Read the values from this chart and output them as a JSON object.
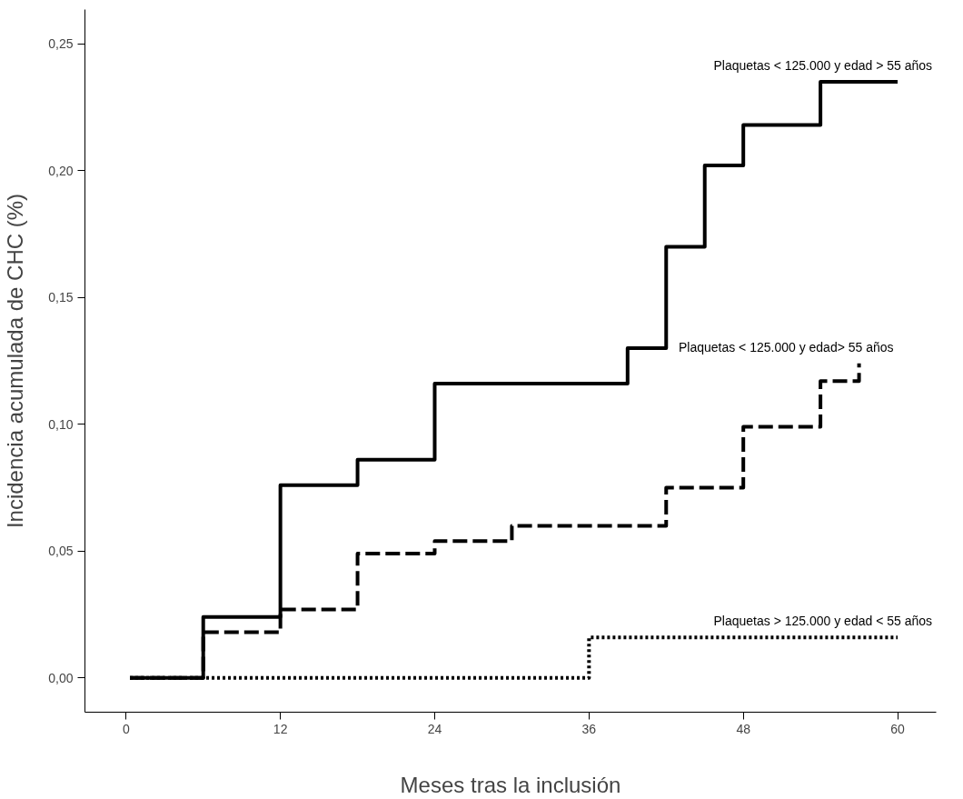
{
  "chart_data": {
    "type": "step",
    "xlabel": "Meses tras la inclusión",
    "ylabel": "Incidencia acumulada de CHC (%)",
    "xlim": [
      -3.2,
      63
    ],
    "ylim": [
      -0.0135,
      0.2635
    ],
    "xticks": [
      0,
      12,
      24,
      36,
      48,
      60
    ],
    "yticks": [
      {
        "value": 0,
        "label": "0,00"
      },
      {
        "value": 0.05,
        "label": "0,05"
      },
      {
        "value": 0.1,
        "label": "0,10"
      },
      {
        "value": 0.15,
        "label": "0,15"
      },
      {
        "value": 0.2,
        "label": "0,20"
      },
      {
        "value": 0.25,
        "label": "0,25"
      }
    ],
    "grid": false,
    "series": [
      {
        "name": "Plaquetas < 125.000 y edad > 55 años",
        "color": "#000000",
        "line_style": "solid",
        "x": [
          0.3,
          6,
          12,
          18,
          24,
          39,
          42,
          45,
          48,
          54,
          60
        ],
        "values": [
          0,
          0.024,
          0.076,
          0.086,
          0.116,
          0.13,
          0.17,
          0.202,
          0.218,
          0.235,
          0.235
        ]
      },
      {
        "name": "Plaquetas < 125.000 y edad> 55 años",
        "color": "#000000",
        "line_style": "dashed",
        "x": [
          0.3,
          6,
          12,
          18,
          24,
          30,
          42,
          48,
          54,
          57
        ],
        "values": [
          0,
          0.018,
          0.027,
          0.049,
          0.054,
          0.06,
          0.075,
          0.099,
          0.117,
          0.124
        ]
      },
      {
        "name": "Plaquetas > 125.000 y edad < 55 años",
        "color": "#000000",
        "line_style": "dotted",
        "x": [
          0.3,
          36,
          60
        ],
        "values": [
          0,
          0.016,
          0.016
        ]
      }
    ]
  }
}
